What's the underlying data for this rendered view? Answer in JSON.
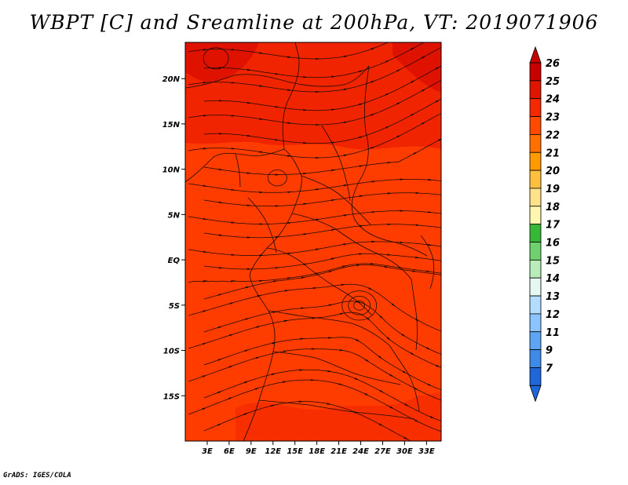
{
  "title": "WBPT [C] and Sreamline at 200hPa, VT: 2019071906",
  "credit": "GrADS: IGES/COLA",
  "map": {
    "lon_range": [
      0,
      35
    ],
    "lat_range": [
      -20,
      24
    ],
    "x_ticks": [
      {
        "value": 3,
        "label": "3E"
      },
      {
        "value": 6,
        "label": "6E"
      },
      {
        "value": 9,
        "label": "9E"
      },
      {
        "value": 12,
        "label": "12E"
      },
      {
        "value": 15,
        "label": "15E"
      },
      {
        "value": 18,
        "label": "18E"
      },
      {
        "value": 21,
        "label": "21E"
      },
      {
        "value": 24,
        "label": "24E"
      },
      {
        "value": 27,
        "label": "27E"
      },
      {
        "value": 30,
        "label": "30E"
      },
      {
        "value": 33,
        "label": "33E"
      }
    ],
    "y_ticks": [
      {
        "value": 20,
        "label": "20N"
      },
      {
        "value": 15,
        "label": "15N"
      },
      {
        "value": 10,
        "label": "10N"
      },
      {
        "value": 5,
        "label": "5N"
      },
      {
        "value": 0,
        "label": "EQ"
      },
      {
        "value": -5,
        "label": "5S"
      },
      {
        "value": -10,
        "label": "10S"
      },
      {
        "value": -15,
        "label": "15S"
      }
    ],
    "base_color": "#ff3c00",
    "warm_color": "#ee2200",
    "hot_color": "#dd1100"
  },
  "colorbar": {
    "levels": [
      {
        "label": "26",
        "color": "#c80000"
      },
      {
        "label": "25",
        "color": "#e01500"
      },
      {
        "label": "24",
        "color": "#f52800"
      },
      {
        "label": "23",
        "color": "#ff4a00"
      },
      {
        "label": "22",
        "color": "#ff7000"
      },
      {
        "label": "21",
        "color": "#ff9a00"
      },
      {
        "label": "20",
        "color": "#ffc040"
      },
      {
        "label": "19",
        "color": "#ffe28a"
      },
      {
        "label": "18",
        "color": "#fff6b0"
      },
      {
        "label": "17",
        "color": "#35b835"
      },
      {
        "label": "16",
        "color": "#6fd06f"
      },
      {
        "label": "15",
        "color": "#b8ecb8"
      },
      {
        "label": "14",
        "color": "#e6f8f2"
      },
      {
        "label": "13",
        "color": "#b4dcff"
      },
      {
        "label": "12",
        "color": "#8cc4ff"
      },
      {
        "label": "11",
        "color": "#5ea6f5"
      },
      {
        "label": "9",
        "color": "#3d8ae8"
      },
      {
        "label": "7",
        "color": "#1f66d8"
      }
    ],
    "bottom_color": "#1f66d8"
  }
}
